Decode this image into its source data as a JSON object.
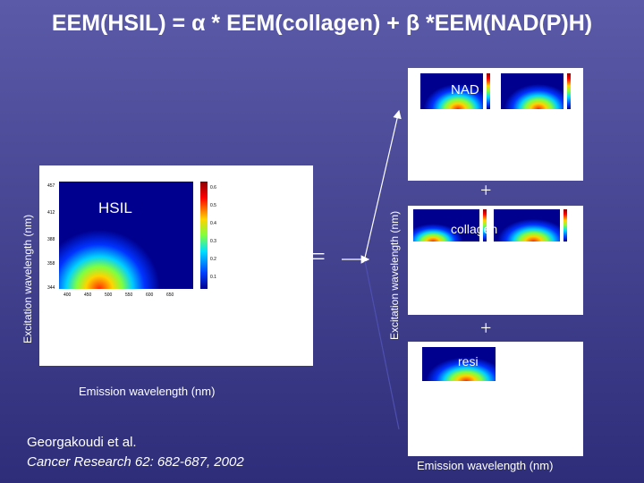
{
  "title": "EEM(HSIL) = α * EEM(collagen) + β *EEM(NAD(P)H)",
  "main_panel": {
    "label": "HSIL",
    "y_axis_label": "Excitation wavelength (nm)",
    "x_axis_label": "Emission wavelength (nm)",
    "y_ticks": [
      "457",
      "412",
      "388",
      "358",
      "344"
    ],
    "x_ticks": [
      "400",
      "450",
      "500",
      "550",
      "600",
      "650"
    ],
    "colorbar_ticks": [
      "0.6",
      "0.5",
      "0.4",
      "0.3",
      "0.2",
      "0.1"
    ]
  },
  "equals_sign": "=",
  "right_column": {
    "y_axis_label": "Excitation wavelength (nm)",
    "x_axis_label": "Emission wavelength (nm)",
    "components": [
      {
        "label": "NAD"
      },
      {
        "label": "collagen"
      },
      {
        "label": "resi"
      }
    ],
    "plus_signs": [
      "+",
      "+"
    ]
  },
  "reference": {
    "line1": "Georgakoudi et al.",
    "line2": "Cancer Research 62: 682-687, 2002"
  },
  "colors": {
    "background_top": "#5a5aa8",
    "background_bottom": "#2d2d7a",
    "text": "#ffffff"
  }
}
